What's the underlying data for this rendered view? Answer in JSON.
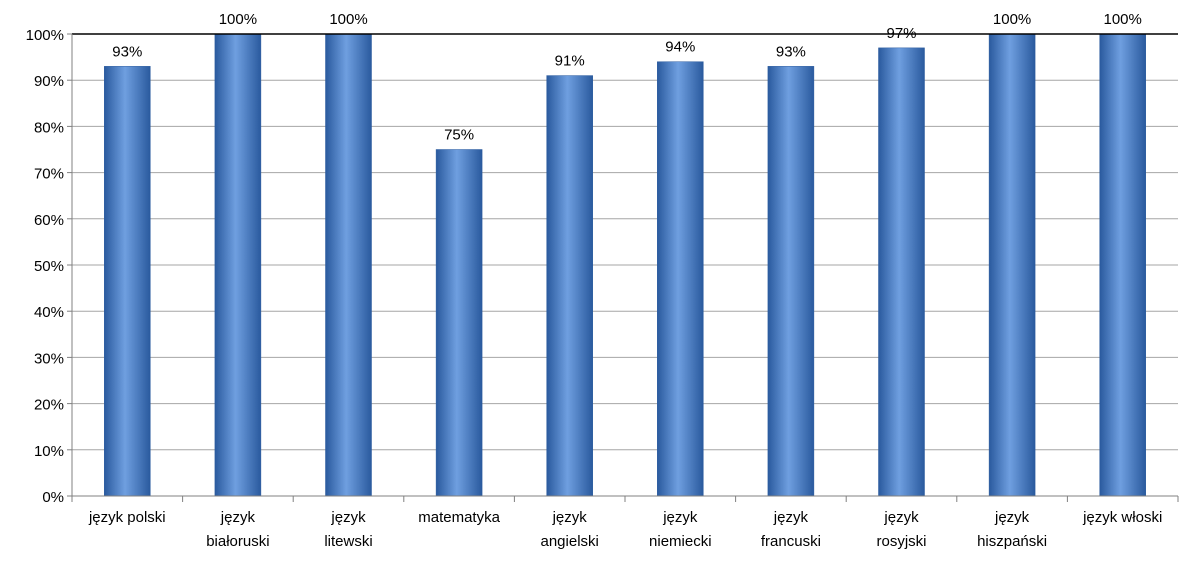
{
  "chart_data": {
    "type": "bar",
    "categories": [
      "język polski",
      "język białoruski",
      "język litewski",
      "matematyka",
      "język angielski",
      "język niemiecki",
      "język francuski",
      "język rosyjski",
      "język hiszpański",
      "język włoski"
    ],
    "category_label_lines": [
      [
        "język polski"
      ],
      [
        "język",
        "białoruski"
      ],
      [
        "język",
        "litewski"
      ],
      [
        "matematyka"
      ],
      [
        "język",
        "angielski"
      ],
      [
        "język",
        "niemiecki"
      ],
      [
        "język",
        "francuski"
      ],
      [
        "język",
        "rosyjski"
      ],
      [
        "język",
        "hiszpański"
      ],
      [
        "język włoski"
      ]
    ],
    "values": [
      0.93,
      1.0,
      1.0,
      0.75,
      0.91,
      0.94,
      0.93,
      0.97,
      1.0,
      1.0
    ],
    "data_labels": [
      "93%",
      "100%",
      "100%",
      "75%",
      "91%",
      "94%",
      "93%",
      "97%",
      "100%",
      "100%"
    ],
    "y_ticks": [
      "0%",
      "10%",
      "20%",
      "30%",
      "40%",
      "50%",
      "60%",
      "70%",
      "80%",
      "90%",
      "100%"
    ],
    "ylim": [
      0,
      1
    ],
    "title": "",
    "xlabel": "",
    "ylabel": "",
    "grid": true,
    "legend": "none",
    "colors": {
      "bar_dark": "#2a5a9e",
      "bar_mid": "#4a84d4",
      "bar_light": "#6f9fe0",
      "grid": "#a6a6a6",
      "axis": "#808080",
      "top_line": "#000000"
    }
  }
}
